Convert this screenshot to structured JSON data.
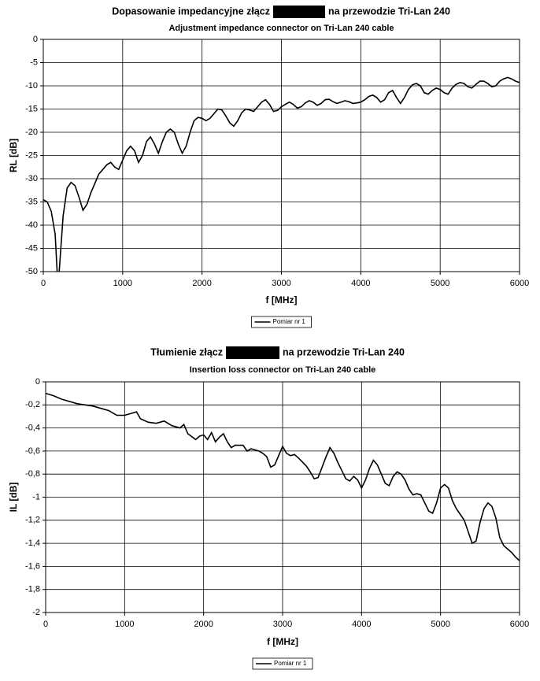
{
  "chart_data": [
    {
      "type": "line",
      "title": [
        "Dopasowanie impedancyjne złącz",
        "na przewodzie Tri-Lan 240"
      ],
      "subtitle": "Adjustment impedance connector on Tri-Lan 240 cable",
      "xlabel": "f [MHz]",
      "ylabel": "RL [dB]",
      "x": [
        0,
        50,
        100,
        150,
        180,
        200,
        250,
        300,
        350,
        400,
        450,
        500,
        550,
        600,
        700,
        800,
        850,
        900,
        950,
        1000,
        1050,
        1100,
        1150,
        1200,
        1250,
        1300,
        1350,
        1400,
        1450,
        1500,
        1550,
        1600,
        1650,
        1700,
        1750,
        1800,
        1850,
        1900,
        1950,
        2000,
        2050,
        2100,
        2150,
        2200,
        2250,
        2300,
        2350,
        2400,
        2450,
        2500,
        2550,
        2600,
        2650,
        2700,
        2750,
        2800,
        2850,
        2900,
        2950,
        3000,
        3050,
        3100,
        3150,
        3200,
        3250,
        3300,
        3350,
        3400,
        3450,
        3500,
        3550,
        3600,
        3650,
        3700,
        3750,
        3800,
        3850,
        3900,
        3950,
        4000,
        4050,
        4100,
        4150,
        4200,
        4250,
        4300,
        4350,
        4400,
        4450,
        4500,
        4550,
        4600,
        4650,
        4700,
        4750,
        4800,
        4850,
        4900,
        4950,
        5000,
        5050,
        5100,
        5150,
        5200,
        5250,
        5300,
        5350,
        5400,
        5450,
        5500,
        5550,
        5600,
        5650,
        5700,
        5750,
        5800,
        5850,
        5900,
        5950,
        6000
      ],
      "series": [
        {
          "name": "Pomiar nr 1",
          "color": "#000000",
          "values": [
            -34.5,
            -35,
            -37,
            -42,
            -52,
            -50,
            -38,
            -32,
            -30.8,
            -31.5,
            -34,
            -36.8,
            -35.5,
            -33,
            -29,
            -27,
            -26.5,
            -27.5,
            -28,
            -26,
            -24,
            -23,
            -24,
            -26.5,
            -25,
            -22,
            -21,
            -22.5,
            -24.5,
            -22,
            -20,
            -19.3,
            -20,
            -22.5,
            -24.5,
            -23,
            -20,
            -17.5,
            -16.8,
            -17,
            -17.5,
            -17,
            -16,
            -15,
            -15.2,
            -16.5,
            -18,
            -18.7,
            -17.5,
            -15.8,
            -15,
            -15.2,
            -15.5,
            -14.5,
            -13.5,
            -13,
            -14,
            -15.5,
            -15.3,
            -14.5,
            -14,
            -13.5,
            -14,
            -14.8,
            -14.5,
            -13.7,
            -13.2,
            -13.5,
            -14.2,
            -13.8,
            -13,
            -12.9,
            -13.4,
            -13.8,
            -13.5,
            -13.2,
            -13.4,
            -13.8,
            -13.7,
            -13.5,
            -13,
            -12.3,
            -12,
            -12.5,
            -13.5,
            -13,
            -11.5,
            -11,
            -12.5,
            -13.8,
            -12.5,
            -10.8,
            -9.8,
            -9.5,
            -10,
            -11.5,
            -11.8,
            -11,
            -10.5,
            -10.8,
            -11.5,
            -11.8,
            -10.5,
            -9.7,
            -9.3,
            -9.5,
            -10.2,
            -10.5,
            -9.7,
            -9,
            -9,
            -9.5,
            -10.2,
            -10,
            -9,
            -8.5,
            -8.2,
            -8.5,
            -9,
            -9.3
          ]
        }
      ],
      "xlim": [
        0,
        6000
      ],
      "xticks": [
        0,
        1000,
        2000,
        3000,
        4000,
        5000,
        6000
      ],
      "ylim": [
        -50,
        0
      ],
      "yticks": [
        0,
        -5,
        -10,
        -15,
        -20,
        -25,
        -30,
        -35,
        -40,
        -45,
        -50
      ],
      "grid": true,
      "legend": "bottom"
    },
    {
      "type": "line",
      "title": [
        "Tłumienie złącz",
        "na przewodzie Tri-Lan 240"
      ],
      "subtitle": "Insertion loss connector on Tri-Lan 240 cable",
      "xlabel": "f [MHz]",
      "ylabel": "IL [dB]",
      "x": [
        0,
        100,
        200,
        300,
        400,
        500,
        600,
        700,
        800,
        900,
        1000,
        1100,
        1150,
        1200,
        1300,
        1400,
        1500,
        1600,
        1700,
        1750,
        1800,
        1900,
        1950,
        2000,
        2050,
        2100,
        2150,
        2200,
        2250,
        2300,
        2350,
        2400,
        2500,
        2550,
        2600,
        2700,
        2750,
        2800,
        2850,
        2900,
        2950,
        3000,
        3050,
        3100,
        3150,
        3200,
        3300,
        3350,
        3400,
        3450,
        3500,
        3550,
        3600,
        3650,
        3700,
        3750,
        3800,
        3850,
        3900,
        3950,
        4000,
        4050,
        4100,
        4150,
        4200,
        4250,
        4300,
        4350,
        4400,
        4450,
        4500,
        4550,
        4600,
        4650,
        4700,
        4750,
        4800,
        4850,
        4900,
        4950,
        5000,
        5050,
        5100,
        5150,
        5200,
        5250,
        5300,
        5350,
        5400,
        5450,
        5500,
        5550,
        5600,
        5650,
        5700,
        5750,
        5800,
        5850,
        5900,
        5950,
        6000
      ],
      "series": [
        {
          "name": "Pomiar nr 1",
          "color": "#000000",
          "values": [
            -0.1,
            -0.12,
            -0.15,
            -0.17,
            -0.19,
            -0.2,
            -0.21,
            -0.23,
            -0.25,
            -0.29,
            -0.29,
            -0.27,
            -0.26,
            -0.32,
            -0.35,
            -0.36,
            -0.34,
            -0.38,
            -0.4,
            -0.37,
            -0.45,
            -0.5,
            -0.47,
            -0.46,
            -0.5,
            -0.44,
            -0.52,
            -0.48,
            -0.45,
            -0.52,
            -0.57,
            -0.55,
            -0.55,
            -0.6,
            -0.58,
            -0.6,
            -0.62,
            -0.65,
            -0.74,
            -0.72,
            -0.64,
            -0.56,
            -0.62,
            -0.64,
            -0.63,
            -0.66,
            -0.73,
            -0.78,
            -0.84,
            -0.83,
            -0.74,
            -0.65,
            -0.57,
            -0.62,
            -0.7,
            -0.77,
            -0.84,
            -0.86,
            -0.82,
            -0.85,
            -0.92,
            -0.85,
            -0.75,
            -0.68,
            -0.72,
            -0.8,
            -0.88,
            -0.9,
            -0.82,
            -0.78,
            -0.8,
            -0.85,
            -0.93,
            -0.98,
            -0.97,
            -0.98,
            -1.05,
            -1.12,
            -1.14,
            -1.05,
            -0.92,
            -0.89,
            -0.92,
            -1.03,
            -1.1,
            -1.15,
            -1.2,
            -1.3,
            -1.4,
            -1.38,
            -1.22,
            -1.1,
            -1.05,
            -1.08,
            -1.18,
            -1.35,
            -1.42,
            -1.45,
            -1.48,
            -1.52,
            -1.55
          ]
        }
      ],
      "xlim": [
        0,
        6000
      ],
      "xticks": [
        0,
        1000,
        2000,
        3000,
        4000,
        5000,
        6000
      ],
      "ylim": [
        -2,
        0
      ],
      "yticks": [
        0,
        {
          "value": -0.2,
          "label": "-0,2"
        },
        {
          "value": -0.4,
          "label": "-0,4"
        },
        {
          "value": -0.6,
          "label": "-0,6"
        },
        {
          "value": -0.8,
          "label": "-0,8"
        },
        -1,
        {
          "value": -1.2,
          "label": "-1,2"
        },
        {
          "value": -1.4,
          "label": "-1,4"
        },
        {
          "value": -1.6,
          "label": "-1,6"
        },
        {
          "value": -1.8,
          "label": "-1,8"
        },
        -2
      ],
      "grid": true,
      "legend": "bottom"
    }
  ]
}
